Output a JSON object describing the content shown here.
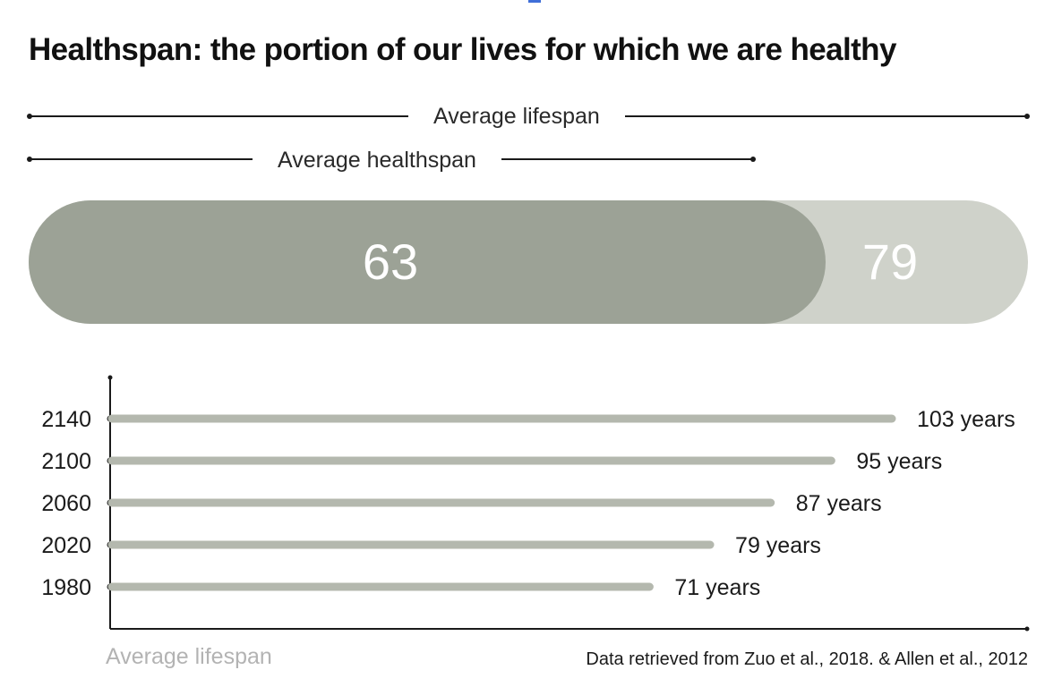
{
  "title": "Healthspan: the portion of our lives for which we are healthy",
  "legend": {
    "lifespan_label": "Average lifespan",
    "healthspan_label": "Average healthspan"
  },
  "pill": {
    "healthspan_value": "63",
    "lifespan_value": "79"
  },
  "chart_data": {
    "type": "bar",
    "orientation": "horizontal",
    "title": "Healthspan: the portion of our lives for which we are healthy",
    "categories": [
      "2140",
      "2100",
      "2060",
      "2020",
      "1980"
    ],
    "values": [
      103,
      95,
      87,
      79,
      71
    ],
    "value_labels": [
      "103 years",
      "95 years",
      "87 years",
      "79 years",
      "71 years"
    ],
    "xlabel": "Average lifespan",
    "ylabel": "",
    "xlim": [
      0,
      110
    ],
    "grid": false,
    "summary": {
      "healthspan": 63,
      "lifespan": 79
    }
  },
  "source": "Data retrieved from Zuo et al., 2018. & Allen et al., 2012",
  "colors": {
    "bar": "#b4b8ae",
    "healthspan_fill": "#9ca296",
    "lifespan_fill": "#cfd2ca",
    "axis": "#1a1a1a"
  }
}
